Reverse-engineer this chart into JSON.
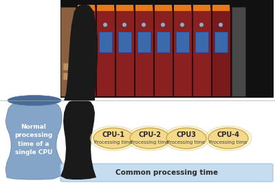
{
  "bg_color": "#ffffff",
  "blue_vase_color": "#7a9cc4",
  "blue_vase_dark": "#5a7aaa",
  "blue_vase_top": "#4a6a9a",
  "dark_blob_color": "#1a1a1a",
  "light_blue_bar_color": "#c5ddef",
  "light_blue_bar_edge": "#a0c0dc",
  "cpu_fill_color": "#f5d98a",
  "cpu_fill_light": "#faefc0",
  "cpu_edge_color": "#c8a84b",
  "cpu_labels": [
    "CPU-1",
    "CPU-2",
    "CPU3",
    "CPU-4"
  ],
  "cpu_subtitles": [
    "Processing time",
    "Processing time",
    "Processing time",
    "Processing time"
  ],
  "normal_cpu_text": "Normal\nprocessing\ntime of a\nsingle CPU",
  "common_text": "Common processing time",
  "normal_text_color": "#ffffff",
  "common_text_color": "#2a2a2a",
  "cpu_label_color": "#2a2a2a",
  "cpu_sub_color": "#444444",
  "plc_dark_bg": "#111111",
  "plc_module_red": "#8b2020",
  "plc_module_red2": "#7a1a1a",
  "plc_module_gray": "#484848",
  "plc_orange": "#e87818",
  "plc_blue": "#3a6aaa",
  "plc_first_tan": "#8a6040",
  "figsize": [
    4.0,
    2.66
  ],
  "dpi": 100
}
